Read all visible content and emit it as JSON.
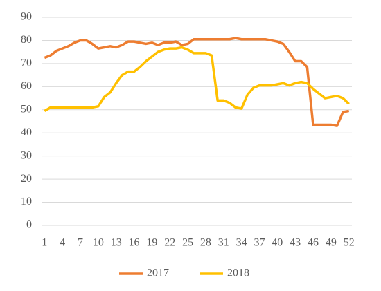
{
  "chart_data": {
    "type": "line",
    "categories": [
      "1",
      null,
      null,
      "4",
      null,
      null,
      "7",
      null,
      null,
      "10",
      null,
      null,
      "13",
      null,
      null,
      "16",
      null,
      null,
      "19",
      null,
      null,
      "22",
      null,
      null,
      "25",
      null,
      null,
      "28",
      null,
      null,
      "31",
      null,
      null,
      "34",
      null,
      null,
      "37",
      null,
      null,
      "40",
      null,
      null,
      "43",
      null,
      null,
      "46",
      null,
      null,
      "49",
      null,
      null,
      "52"
    ],
    "series": [
      {
        "name": "2017",
        "color": "#ed7d31",
        "values": [
          72.5,
          73.5,
          75.5,
          76.5,
          77.5,
          79,
          80,
          80,
          78.5,
          76.5,
          77,
          77.5,
          77,
          78,
          79.5,
          79.5,
          79,
          78.5,
          79,
          78,
          79,
          79,
          79.5,
          78,
          78.5,
          80.5,
          80.5,
          80.5,
          80.5,
          80.5,
          80.5,
          80.5,
          81,
          80.5,
          80.5,
          80.5,
          80.5,
          80.5,
          80,
          79.5,
          78.5,
          75,
          71,
          71,
          68.5,
          43.5,
          43.5,
          43.5,
          43.5,
          43,
          49,
          49.5
        ]
      },
      {
        "name": "2018",
        "color": "#ffc000",
        "values": [
          49.5,
          51,
          51,
          51,
          51,
          51,
          51,
          51,
          51,
          51.5,
          55.5,
          57.5,
          61.5,
          65,
          66.5,
          66.5,
          68.5,
          71,
          73,
          75,
          76,
          76.5,
          76.5,
          77,
          76,
          74.5,
          74.5,
          74.5,
          73.5,
          54,
          54,
          53,
          51,
          50.5,
          56.5,
          59.5,
          60.5,
          60.5,
          60.5,
          61,
          61.5,
          60.5,
          61.5,
          62,
          61.5,
          59,
          57,
          55,
          55.5,
          56,
          55,
          52.5
        ]
      }
    ],
    "ylim": [
      0,
      90
    ],
    "yticks": [
      0,
      10,
      20,
      30,
      40,
      50,
      60,
      70,
      80,
      90
    ],
    "grid": true,
    "legend": "bottom"
  }
}
